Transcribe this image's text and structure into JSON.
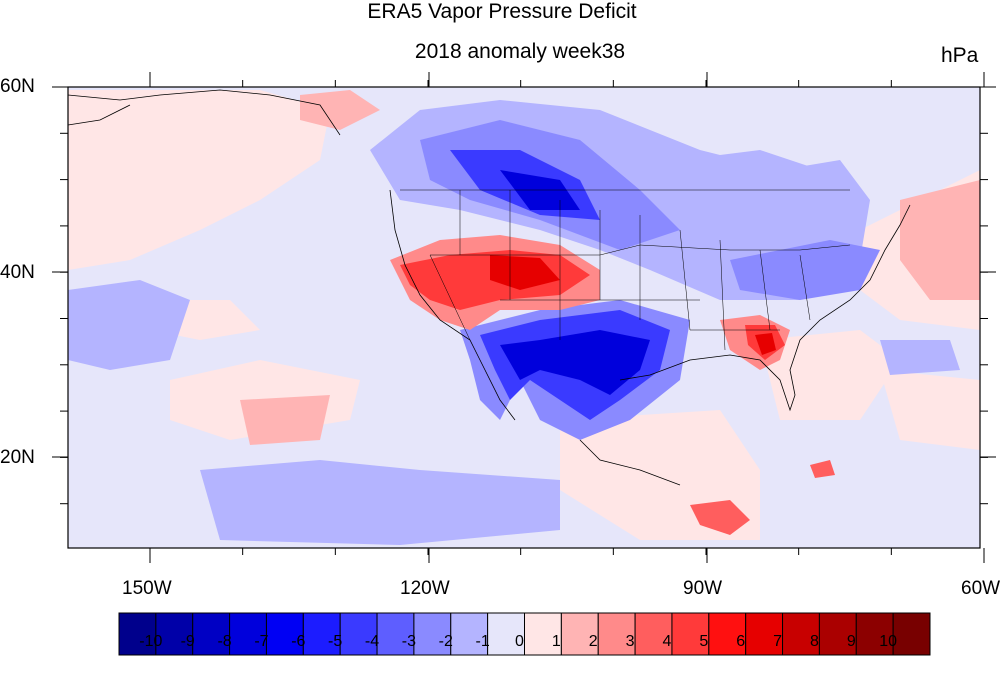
{
  "header": {
    "title": "ERA5 Vapor Pressure Deficit",
    "subtitle": "2018 anomaly week38",
    "units": "hPa"
  },
  "axes": {
    "y_labels": [
      "60N",
      "40N",
      "20N"
    ],
    "x_labels": [
      "150W",
      "120W",
      "90W",
      "60W"
    ]
  },
  "colorbar": {
    "labels": [
      "-10",
      "-9",
      "-8",
      "-7",
      "-6",
      "-5",
      "-4",
      "-3",
      "-2",
      "-1",
      "0",
      "1",
      "2",
      "3",
      "4",
      "5",
      "6",
      "7",
      "8",
      "9",
      "10"
    ],
    "colors": [
      "#00008c",
      "#0000a8",
      "#0000c4",
      "#0000dc",
      "#0000f4",
      "#1c1cff",
      "#3a3aff",
      "#5e5eff",
      "#8a8aff",
      "#b4b4ff",
      "#e6e6fa",
      "#ffe6e6",
      "#ffb4b4",
      "#ff8a8a",
      "#ff5e5e",
      "#ff3a3a",
      "#ff1010",
      "#e60000",
      "#c80000",
      "#aa0000",
      "#8c0000",
      "#780000"
    ]
  },
  "map_colors": {
    "background": "#e6e6fa",
    "light_red": "#ffe6e6",
    "mid_red": "#ff8a8a",
    "strong_red": "#ff3a3a",
    "dark_red": "#e60000",
    "light_blue": "#b4b4ff",
    "mid_blue": "#8a8aff",
    "strong_blue": "#3a3aff",
    "dark_blue": "#0000dc"
  }
}
